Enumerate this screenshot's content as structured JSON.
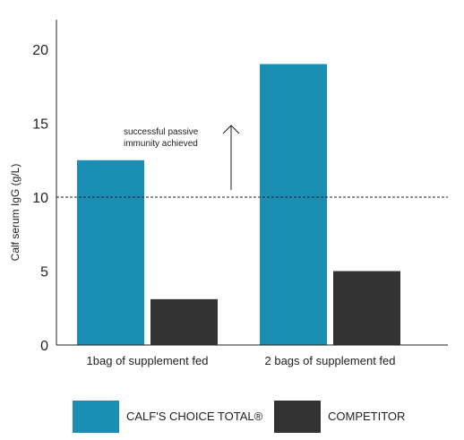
{
  "chart_data": {
    "type": "bar",
    "title": "",
    "xlabel": "",
    "ylabel": "Calf serum IgG (g/L)",
    "ylim": [
      0,
      22
    ],
    "yticks": [
      0,
      5,
      10,
      15,
      20
    ],
    "grid": false,
    "categories": [
      "1bag of supplement fed",
      "2 bags of supplement fed"
    ],
    "series": [
      {
        "name": "CALF'S CHOICE TOTAL®",
        "color": "#1a8fb3",
        "values": [
          12.5,
          19
        ]
      },
      {
        "name": "COMPETITOR",
        "color": "#333333",
        "values": [
          3.1,
          5
        ]
      }
    ],
    "reference_line": {
      "y": 10,
      "style": "dashed"
    },
    "annotation": {
      "lines": [
        "successful passive",
        "immunity achieved"
      ],
      "arrow": "up"
    },
    "legend_position": "bottom"
  }
}
